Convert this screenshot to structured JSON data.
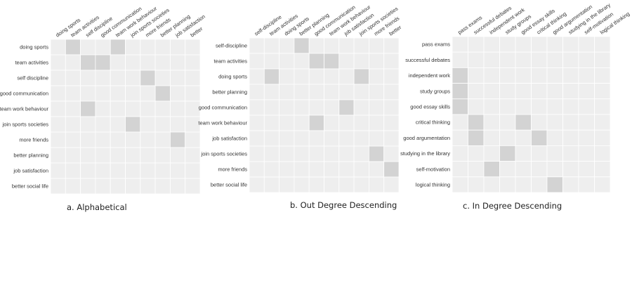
{
  "colors": {
    "cell_bg": "#eeeeee",
    "cell_on": "#d3d3d3",
    "grid_line": "#ffffff",
    "label": "#333333"
  },
  "panels": [
    {
      "caption": "a. Alphabetical",
      "rows": [
        "doing sports",
        "team activities",
        "self discipline",
        "good communication",
        "team work behaviour",
        "join sports societies",
        "more friends",
        "better planning",
        "job satisfaction",
        "better social life"
      ],
      "cols": [
        "doing sports",
        "team activities",
        "self discipline",
        "good communication",
        "team work behaviour",
        "join sports societies",
        "more friends",
        "better planning",
        "job satisfaction",
        "better"
      ],
      "filled": [
        [
          0,
          1
        ],
        [
          0,
          4
        ],
        [
          1,
          2
        ],
        [
          1,
          3
        ],
        [
          2,
          6
        ],
        [
          3,
          7
        ],
        [
          4,
          2
        ],
        [
          5,
          5
        ],
        [
          6,
          8
        ]
      ]
    },
    {
      "caption": "b. Out Degree Descending",
      "rows": [
        "self-discipline",
        "team activities",
        "doing sports",
        "better planning",
        "good communication",
        "team work behaviour",
        "job satisfaction",
        "join sports societies",
        "more friends",
        "better social life"
      ],
      "cols": [
        "self-discipline",
        "team activities",
        "doing sports",
        "better planning",
        "good communication",
        "team work behaviour",
        "job satisfaction",
        "join sports societies",
        "more friends",
        "better"
      ],
      "filled": [
        [
          0,
          3
        ],
        [
          1,
          4
        ],
        [
          1,
          5
        ],
        [
          2,
          1
        ],
        [
          2,
          7
        ],
        [
          4,
          6
        ],
        [
          5,
          4
        ],
        [
          7,
          8
        ],
        [
          8,
          9
        ]
      ]
    },
    {
      "caption": "c. In Degree Descending",
      "rows": [
        "pass exams",
        "successful debates",
        "independent work",
        "study groups",
        "good essay skills",
        "critical thinking",
        "good argumentation",
        "studying in the library",
        "self-motivation",
        "logical thinking"
      ],
      "cols": [
        "pass exams",
        "successful debates",
        "independent work",
        "study groups",
        "good essay skills",
        "critical thinking",
        "good argumentation",
        "studying in the library",
        "self-motivation",
        "logical thinking"
      ],
      "filled": [
        [
          2,
          0
        ],
        [
          3,
          0
        ],
        [
          4,
          0
        ],
        [
          5,
          1
        ],
        [
          5,
          4
        ],
        [
          6,
          1
        ],
        [
          6,
          5
        ],
        [
          7,
          3
        ],
        [
          8,
          2
        ],
        [
          9,
          6
        ]
      ]
    }
  ]
}
